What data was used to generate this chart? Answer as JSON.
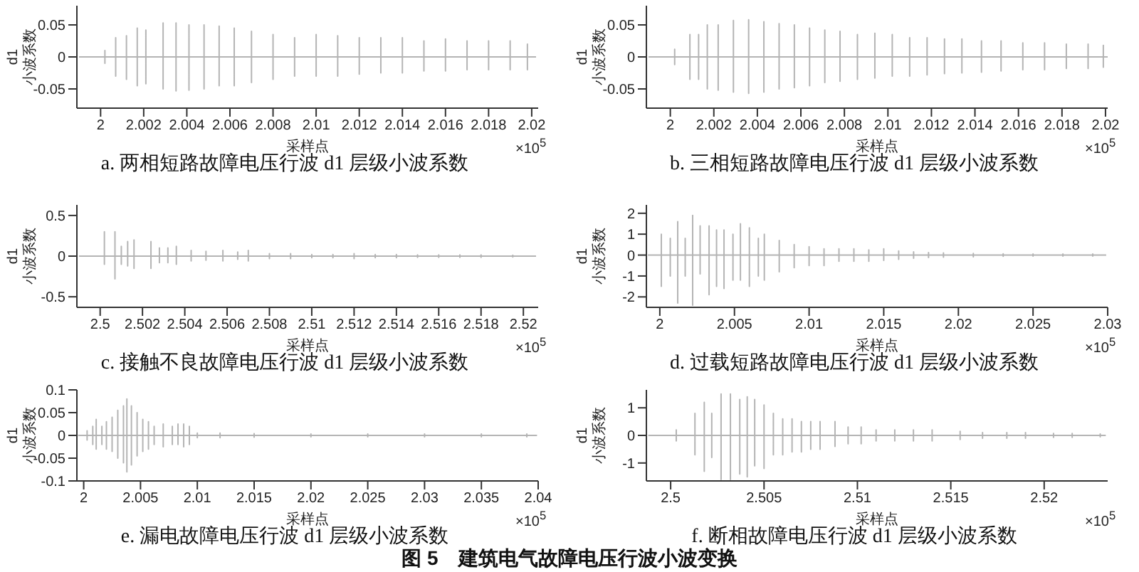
{
  "chart_data": [
    {
      "type": "line",
      "title": "a. 两相短路故障电压行波 d1 层级小波系数",
      "xlabel": "采样点",
      "ylabel": "d1 小波系数",
      "color": "#b4b4b4",
      "annotations": [
        "×10$^{5}$"
      ],
      "xlim": [
        1.9989,
        2.0203
      ],
      "xticks": [
        2,
        2.002,
        2.004,
        2.006,
        2.008,
        2.01,
        2.012,
        2.014,
        2.016,
        2.018,
        2.02
      ],
      "ylim": [
        -0.08,
        0.08
      ],
      "yticks": [
        -0.05,
        0,
        0.05
      ],
      "x": [
        1.999,
        2.0002,
        2.0002,
        2.0002,
        2.0002,
        2.0007,
        2.0007,
        2.0007,
        2.0007,
        2.0012,
        2.0012,
        2.0012,
        2.0012,
        2.0017,
        2.0017,
        2.0017,
        2.0017,
        2.0021,
        2.0021,
        2.0021,
        2.0021,
        2.0029,
        2.0029,
        2.0029,
        2.0029,
        2.0035,
        2.0035,
        2.0035,
        2.0035,
        2.0041,
        2.0041,
        2.0041,
        2.0041,
        2.0048,
        2.0048,
        2.0048,
        2.0048,
        2.0055,
        2.0055,
        2.0055,
        2.0055,
        2.0062,
        2.0062,
        2.0062,
        2.0062,
        2.007,
        2.007,
        2.007,
        2.007,
        2.008,
        2.008,
        2.008,
        2.008,
        2.009,
        2.009,
        2.009,
        2.009,
        2.01,
        2.01,
        2.01,
        2.01,
        2.011,
        2.011,
        2.011,
        2.011,
        2.012,
        2.012,
        2.012,
        2.012,
        2.013,
        2.013,
        2.013,
        2.013,
        2.014,
        2.014,
        2.014,
        2.014,
        2.015,
        2.015,
        2.015,
        2.015,
        2.016,
        2.016,
        2.016,
        2.016,
        2.017,
        2.017,
        2.017,
        2.017,
        2.018,
        2.018,
        2.018,
        2.018,
        2.019,
        2.019,
        2.019,
        2.019,
        2.0198,
        2.0198,
        2.0198,
        2.0198,
        2.0202
      ],
      "values": [
        0,
        0,
        0.01,
        -0.01,
        0,
        0,
        0.03,
        -0.03,
        0,
        0,
        0.033,
        -0.035,
        0,
        0,
        0.045,
        -0.045,
        0,
        0,
        0.042,
        -0.042,
        0,
        0,
        0.053,
        -0.05,
        0,
        0,
        0.053,
        -0.053,
        0,
        0,
        0.05,
        -0.052,
        0,
        0,
        0.05,
        -0.05,
        0,
        0,
        0.048,
        -0.045,
        0,
        0,
        0.045,
        -0.045,
        0,
        0,
        0.04,
        -0.04,
        0,
        0,
        0.035,
        -0.035,
        0,
        0,
        0.03,
        -0.03,
        0,
        0,
        0.035,
        -0.03,
        0,
        0,
        0.033,
        -0.03,
        0,
        0,
        0.03,
        -0.027,
        0,
        0,
        0.03,
        -0.025,
        0,
        0,
        0.03,
        -0.025,
        0,
        0,
        0.025,
        -0.022,
        0,
        0,
        0.028,
        -0.022,
        0,
        0,
        0.025,
        -0.02,
        0,
        0,
        0.025,
        -0.02,
        0,
        0,
        0.025,
        -0.02,
        0,
        0,
        0.02,
        -0.02,
        0,
        0
      ]
    },
    {
      "type": "line",
      "title": "b. 三相短路故障电压行波 d1 层级小波系数",
      "xlabel": "采样点",
      "ylabel": "d1 小波系数",
      "color": "#b4b4b4",
      "annotations": [
        "×10$^{5}$"
      ],
      "xlim": [
        1.9989,
        2.0201
      ],
      "xticks": [
        2,
        2.002,
        2.004,
        2.006,
        2.008,
        2.01,
        2.012,
        2.014,
        2.016,
        2.018,
        2.02
      ],
      "ylim": [
        -0.08,
        0.08
      ],
      "yticks": [
        -0.05,
        0,
        0.05
      ],
      "x": [
        1.999,
        2.0002,
        2.0002,
        2.0002,
        2.0002,
        2.0009,
        2.0009,
        2.0009,
        2.0009,
        2.0013,
        2.0013,
        2.0013,
        2.0013,
        2.0017,
        2.0017,
        2.0017,
        2.0017,
        2.0022,
        2.0022,
        2.0022,
        2.0022,
        2.0029,
        2.0029,
        2.0029,
        2.0029,
        2.0036,
        2.0036,
        2.0036,
        2.0036,
        2.0043,
        2.0043,
        2.0043,
        2.0043,
        2.005,
        2.005,
        2.005,
        2.005,
        2.0057,
        2.0057,
        2.0057,
        2.0057,
        2.0064,
        2.0064,
        2.0064,
        2.0064,
        2.0071,
        2.0071,
        2.0071,
        2.0071,
        2.0078,
        2.0078,
        2.0078,
        2.0078,
        2.0086,
        2.0086,
        2.0086,
        2.0086,
        2.0094,
        2.0094,
        2.0094,
        2.0094,
        2.0102,
        2.0102,
        2.0102,
        2.0102,
        2.011,
        2.011,
        2.011,
        2.011,
        2.0118,
        2.0118,
        2.0118,
        2.0118,
        2.0126,
        2.0126,
        2.0126,
        2.0126,
        2.0134,
        2.0134,
        2.0134,
        2.0134,
        2.0143,
        2.0143,
        2.0143,
        2.0143,
        2.0152,
        2.0152,
        2.0152,
        2.0152,
        2.0162,
        2.0162,
        2.0162,
        2.0162,
        2.0172,
        2.0172,
        2.0172,
        2.0172,
        2.0182,
        2.0182,
        2.0182,
        2.0182,
        2.0192,
        2.0192,
        2.0192,
        2.0192,
        2.0199,
        2.0199,
        2.0199,
        2.0199,
        2.0201
      ],
      "values": [
        0,
        0,
        0.012,
        -0.012,
        0,
        0,
        0.035,
        -0.035,
        0,
        0,
        0.035,
        -0.035,
        0,
        0,
        0.05,
        -0.05,
        0,
        0,
        0.05,
        -0.052,
        0,
        0,
        0.057,
        -0.055,
        0,
        0,
        0.058,
        -0.057,
        0,
        0,
        0.055,
        -0.055,
        0,
        0,
        0.052,
        -0.05,
        0,
        0,
        0.05,
        -0.048,
        0,
        0,
        0.045,
        -0.045,
        0,
        0,
        0.042,
        -0.04,
        0,
        0,
        0.04,
        -0.038,
        0,
        0,
        0.035,
        -0.035,
        0,
        0,
        0.037,
        -0.033,
        0,
        0,
        0.035,
        -0.03,
        0,
        0,
        0.03,
        -0.03,
        0,
        0,
        0.03,
        -0.028,
        0,
        0,
        0.028,
        -0.026,
        0,
        0,
        0.028,
        -0.025,
        0,
        0,
        0.025,
        -0.024,
        0,
        0,
        0.025,
        -0.022,
        0,
        0,
        0.022,
        -0.02,
        0,
        0,
        0.022,
        -0.02,
        0,
        0,
        0.02,
        -0.018,
        0,
        0,
        0.02,
        -0.018,
        0,
        0,
        0.018,
        -0.016,
        0,
        0
      ]
    },
    {
      "type": "line",
      "title": "c. 接触不良故障电压行波 d1 层级小波系数",
      "xlabel": "采样点",
      "ylabel": "d1 小波系数",
      "color": "#b4b4b4",
      "annotations": [
        "×10$^{5}$"
      ],
      "xlim": [
        2.4989,
        2.5207
      ],
      "xticks": [
        2.5,
        2.502,
        2.504,
        2.506,
        2.508,
        2.51,
        2.512,
        2.514,
        2.516,
        2.518,
        2.52
      ],
      "ylim": [
        -0.63,
        0.63
      ],
      "yticks": [
        -0.5,
        0,
        0.5
      ],
      "x": [
        2.499,
        2.5002,
        2.5002,
        2.5002,
        2.5002,
        2.5007,
        2.5007,
        2.5007,
        2.5007,
        2.501,
        2.501,
        2.501,
        2.501,
        2.5013,
        2.5013,
        2.5013,
        2.5013,
        2.5016,
        2.5016,
        2.5016,
        2.5016,
        2.5024,
        2.5024,
        2.5024,
        2.5024,
        2.5028,
        2.5028,
        2.5028,
        2.5028,
        2.5032,
        2.5032,
        2.5032,
        2.5032,
        2.5036,
        2.5036,
        2.5036,
        2.5036,
        2.5043,
        2.5043,
        2.5043,
        2.5043,
        2.505,
        2.505,
        2.505,
        2.505,
        2.5058,
        2.5058,
        2.5058,
        2.5058,
        2.5065,
        2.5065,
        2.5065,
        2.5065,
        2.507,
        2.507,
        2.507,
        2.507,
        2.508,
        2.508,
        2.508,
        2.508,
        2.509,
        2.509,
        2.509,
        2.509,
        2.51,
        2.51,
        2.51,
        2.51,
        2.511,
        2.511,
        2.511,
        2.511,
        2.512,
        2.512,
        2.512,
        2.512,
        2.513,
        2.513,
        2.513,
        2.513,
        2.514,
        2.514,
        2.514,
        2.514,
        2.515,
        2.515,
        2.515,
        2.515,
        2.516,
        2.516,
        2.516,
        2.516,
        2.517,
        2.517,
        2.517,
        2.517,
        2.518,
        2.518,
        2.518,
        2.518,
        2.5195,
        2.5195,
        2.5195,
        2.5195,
        2.5206
      ],
      "values": [
        0,
        0,
        0.3,
        -0.1,
        0,
        0,
        0.3,
        -0.28,
        0,
        0,
        0.12,
        -0.1,
        0,
        0,
        0.18,
        -0.12,
        0,
        0,
        0.2,
        -0.15,
        0,
        0,
        0.18,
        -0.15,
        0,
        0,
        0.1,
        -0.08,
        0,
        0,
        0.1,
        -0.08,
        0,
        0,
        0.12,
        -0.1,
        0,
        0,
        0.07,
        -0.06,
        0,
        0,
        0.06,
        -0.05,
        0,
        0,
        0.07,
        -0.06,
        0,
        0,
        0.05,
        -0.04,
        0,
        0,
        0.07,
        -0.06,
        0,
        0,
        0.03,
        -0.03,
        0,
        0,
        0.03,
        -0.03,
        0,
        0,
        0.02,
        -0.02,
        0,
        0,
        0.02,
        -0.02,
        0,
        0,
        0.03,
        -0.03,
        0,
        0,
        0.02,
        -0.02,
        0,
        0,
        0.02,
        -0.02,
        0,
        0,
        0.015,
        -0.015,
        0,
        0,
        0.015,
        -0.015,
        0,
        0,
        0.015,
        -0.015,
        0,
        0,
        0.015,
        -0.015,
        0,
        0,
        0.012,
        -0.012,
        0,
        0
      ]
    },
    {
      "type": "line",
      "title": "d. 过载短路故障电压行波 d1 层级小波系数",
      "xlabel": "采样点",
      "ylabel": "d1 小波系数",
      "color": "#b4b4b4",
      "annotations": [
        "×10$^{5}$"
      ],
      "xlim": [
        1.9991,
        2.03
      ],
      "xticks": [
        2,
        2.005,
        2.01,
        2.015,
        2.02,
        2.025,
        2.03
      ],
      "ylim": [
        -2.5,
        2.4
      ],
      "yticks": [
        -2,
        -1,
        0,
        1,
        2
      ],
      "x": [
        1.9992,
        2.0001,
        2.0001,
        2.0001,
        2.0001,
        2.0007,
        2.0007,
        2.0007,
        2.0007,
        2.0012,
        2.0012,
        2.0012,
        2.0012,
        2.0017,
        2.0017,
        2.0017,
        2.0017,
        2.0022,
        2.0022,
        2.0022,
        2.0022,
        2.0027,
        2.0027,
        2.0027,
        2.0027,
        2.0033,
        2.0033,
        2.0033,
        2.0033,
        2.0038,
        2.0038,
        2.0038,
        2.0038,
        2.0043,
        2.0043,
        2.0043,
        2.0043,
        2.0049,
        2.0049,
        2.0049,
        2.0049,
        2.0054,
        2.0054,
        2.0054,
        2.0054,
        2.006,
        2.006,
        2.006,
        2.006,
        2.0066,
        2.0066,
        2.0066,
        2.0066,
        2.007,
        2.007,
        2.007,
        2.007,
        2.008,
        2.008,
        2.008,
        2.008,
        2.009,
        2.009,
        2.009,
        2.009,
        2.01,
        2.01,
        2.01,
        2.01,
        2.011,
        2.011,
        2.011,
        2.011,
        2.012,
        2.012,
        2.012,
        2.012,
        2.013,
        2.013,
        2.013,
        2.013,
        2.014,
        2.014,
        2.014,
        2.014,
        2.015,
        2.015,
        2.015,
        2.015,
        2.016,
        2.016,
        2.016,
        2.016,
        2.017,
        2.017,
        2.017,
        2.017,
        2.018,
        2.018,
        2.018,
        2.018,
        2.019,
        2.019,
        2.019,
        2.019,
        2.021,
        2.021,
        2.021,
        2.021,
        2.023,
        2.023,
        2.023,
        2.023,
        2.025,
        2.025,
        2.025,
        2.025,
        2.027,
        2.027,
        2.027,
        2.027,
        2.029,
        2.029,
        2.029,
        2.029,
        2.0299
      ],
      "values": [
        0,
        0,
        1,
        -1.5,
        0,
        0,
        0.8,
        -1,
        0,
        0,
        1.6,
        -2.3,
        0,
        0,
        0.8,
        -1,
        0,
        0,
        1.9,
        -2.4,
        0,
        0,
        1.4,
        -0.9,
        0,
        0,
        1.4,
        -1.9,
        0,
        0,
        1.2,
        -1.5,
        0,
        0,
        1.2,
        -1.6,
        0,
        0,
        1,
        -1.2,
        0,
        0,
        1.5,
        -1.2,
        0,
        0,
        1.3,
        -1.5,
        0,
        0,
        0.8,
        -1,
        0,
        0,
        1,
        -1.2,
        0,
        0,
        0.7,
        -0.8,
        0,
        0,
        0.5,
        -0.6,
        0,
        0,
        0.4,
        -0.5,
        0,
        0,
        0.3,
        -0.5,
        0,
        0,
        0.3,
        -0.3,
        0,
        0,
        0.3,
        -0.3,
        0,
        0,
        0.25,
        -0.3,
        0,
        0,
        0.3,
        -0.25,
        0,
        0,
        0.2,
        -0.2,
        0,
        0,
        0.15,
        -0.15,
        0,
        0,
        0.12,
        -0.12,
        0,
        0,
        0.1,
        -0.1,
        0,
        0,
        0.08,
        -0.08,
        0,
        0,
        0.06,
        -0.06,
        0,
        0,
        0.05,
        -0.05,
        0,
        0,
        0.05,
        -0.05,
        0,
        0,
        0.05,
        -0.05,
        0,
        0
      ]
    },
    {
      "type": "line",
      "title": "e. 漏电故障电压行波 d1 层级小波系数",
      "xlabel": "采样点",
      "ylabel": "d1 小波系数",
      "color": "#b4b4b4",
      "annotations": [
        "×10$^{5}$"
      ],
      "xlim": [
        1.9994,
        2.04
      ],
      "xticks": [
        2,
        2.005,
        2.01,
        2.015,
        2.02,
        2.025,
        2.03,
        2.035,
        2.04
      ],
      "ylim": [
        -0.1,
        0.1
      ],
      "yticks": [
        -0.1,
        -0.05,
        0,
        0.05,
        0.1
      ],
      "x": [
        1.9995,
        2.0003,
        2.0003,
        2.0003,
        2.0003,
        2.0008,
        2.0008,
        2.0008,
        2.0008,
        2.0011,
        2.0011,
        2.0011,
        2.0011,
        2.0016,
        2.0016,
        2.0016,
        2.0016,
        2.002,
        2.002,
        2.002,
        2.002,
        2.0025,
        2.0025,
        2.0025,
        2.0025,
        2.003,
        2.003,
        2.003,
        2.003,
        2.0035,
        2.0035,
        2.0035,
        2.0035,
        2.0038,
        2.0038,
        2.0038,
        2.0038,
        2.0042,
        2.0042,
        2.0042,
        2.0042,
        2.0047,
        2.0047,
        2.0047,
        2.0047,
        2.0052,
        2.0052,
        2.0052,
        2.0052,
        2.0057,
        2.0057,
        2.0057,
        2.0057,
        2.0062,
        2.0062,
        2.0062,
        2.0062,
        2.007,
        2.007,
        2.007,
        2.007,
        2.0078,
        2.0078,
        2.0078,
        2.0078,
        2.0083,
        2.0083,
        2.0083,
        2.0083,
        2.0088,
        2.0088,
        2.0088,
        2.0088,
        2.0093,
        2.0093,
        2.0093,
        2.0093,
        2.01,
        2.01,
        2.01,
        2.01,
        2.012,
        2.012,
        2.012,
        2.012,
        2.015,
        2.015,
        2.015,
        2.015,
        2.02,
        2.02,
        2.02,
        2.02,
        2.025,
        2.025,
        2.025,
        2.025,
        2.03,
        2.03,
        2.03,
        2.03,
        2.035,
        2.035,
        2.035,
        2.035,
        2.039,
        2.039,
        2.039,
        2.039,
        2.0399
      ],
      "values": [
        0,
        0,
        0.01,
        -0.01,
        0,
        0,
        0.02,
        -0.02,
        0,
        0,
        0.035,
        -0.03,
        0,
        0,
        0.02,
        -0.02,
        0,
        0,
        0.03,
        -0.03,
        0,
        0,
        0.04,
        -0.035,
        0,
        0,
        0.055,
        -0.05,
        0,
        0,
        0.065,
        -0.06,
        0,
        0,
        0.08,
        -0.08,
        0,
        0,
        0.065,
        -0.065,
        0,
        0,
        0.05,
        -0.045,
        0,
        0,
        0.035,
        -0.035,
        0,
        0,
        0.03,
        -0.03,
        0,
        0,
        0.02,
        -0.02,
        0,
        0,
        0.025,
        -0.025,
        0,
        0,
        0.02,
        -0.02,
        0,
        0,
        0.025,
        -0.02,
        0,
        0,
        0.025,
        -0.025,
        0,
        0,
        0.02,
        -0.02,
        0,
        0,
        0.005,
        -0.005,
        0,
        0,
        0.005,
        -0.005,
        0,
        0,
        0.004,
        -0.004,
        0,
        0,
        0.003,
        -0.003,
        0,
        0,
        0.003,
        -0.003,
        0,
        0,
        0.003,
        -0.003,
        0,
        0,
        0.003,
        -0.003,
        0,
        0,
        0.003,
        -0.003,
        0,
        0
      ]
    },
    {
      "type": "line",
      "title": "f. 断相故障电压行波 d1 层级小波系数",
      "xlabel": "采样点",
      "ylabel": "d1 小波系数",
      "color": "#b4b4b4",
      "annotations": [
        "×10$^{5}$",
        "图 5　建筑电气故障电压行波小波变换"
      ],
      "xlim": [
        2.4987,
        2.5234
      ],
      "xticks": [
        2.5,
        2.505,
        2.51,
        2.515,
        2.52
      ],
      "ylim": [
        -1.65,
        1.65
      ],
      "yticks": [
        -1,
        0,
        1
      ],
      "x": [
        2.4988,
        2.5003,
        2.5003,
        2.5003,
        2.5003,
        2.5013,
        2.5013,
        2.5013,
        2.5013,
        2.5018,
        2.5018,
        2.5018,
        2.5018,
        2.5022,
        2.5022,
        2.5022,
        2.5022,
        2.5027,
        2.5027,
        2.5027,
        2.5027,
        2.5032,
        2.5032,
        2.5032,
        2.5032,
        2.5037,
        2.5037,
        2.5037,
        2.5037,
        2.5041,
        2.5041,
        2.5041,
        2.5041,
        2.5045,
        2.5045,
        2.5045,
        2.5045,
        2.505,
        2.505,
        2.505,
        2.505,
        2.5055,
        2.5055,
        2.5055,
        2.5055,
        2.506,
        2.506,
        2.506,
        2.506,
        2.5065,
        2.5065,
        2.5065,
        2.5065,
        2.507,
        2.507,
        2.507,
        2.507,
        2.5075,
        2.5075,
        2.5075,
        2.5075,
        2.508,
        2.508,
        2.508,
        2.508,
        2.5088,
        2.5088,
        2.5088,
        2.5088,
        2.5095,
        2.5095,
        2.5095,
        2.5095,
        2.5102,
        2.5102,
        2.5102,
        2.5102,
        2.511,
        2.511,
        2.511,
        2.511,
        2.512,
        2.512,
        2.512,
        2.512,
        2.513,
        2.513,
        2.513,
        2.513,
        2.514,
        2.514,
        2.514,
        2.514,
        2.5155,
        2.5155,
        2.5155,
        2.5155,
        2.5167,
        2.5167,
        2.5167,
        2.5167,
        2.518,
        2.518,
        2.518,
        2.518,
        2.519,
        2.519,
        2.519,
        2.519,
        2.5205,
        2.5205,
        2.5205,
        2.5205,
        2.5215,
        2.5215,
        2.5215,
        2.5215,
        2.523,
        2.523,
        2.523,
        2.523,
        2.5233
      ],
      "values": [
        0,
        0,
        0.2,
        -0.2,
        0,
        0,
        0.8,
        -0.7,
        0,
        0,
        1.2,
        -1.3,
        0,
        0,
        0.8,
        -0.8,
        0,
        0,
        1.5,
        -1.6,
        0,
        0,
        1.5,
        -1.6,
        0,
        0,
        1.3,
        -1.4,
        0,
        0,
        1.4,
        -1.5,
        0,
        0,
        1.3,
        -1.1,
        0,
        0,
        1.1,
        -1.2,
        0,
        0,
        0.8,
        -0.7,
        0,
        0,
        0.6,
        -0.7,
        0,
        0,
        0.6,
        -0.6,
        0,
        0,
        0.5,
        -0.6,
        0,
        0,
        0.5,
        -0.5,
        0,
        0,
        0.5,
        -0.5,
        0,
        0,
        0.5,
        -0.4,
        0,
        0,
        0.3,
        -0.3,
        0,
        0,
        0.3,
        -0.3,
        0,
        0,
        0.2,
        -0.2,
        0,
        0,
        0.2,
        -0.2,
        0,
        0,
        0.2,
        -0.2,
        0,
        0,
        0.2,
        -0.2,
        0,
        0,
        0.15,
        -0.15,
        0,
        0,
        0.1,
        -0.1,
        0,
        0,
        0.1,
        -0.1,
        0,
        0,
        0.1,
        -0.1,
        0,
        0,
        0.07,
        -0.07,
        0,
        0,
        0.07,
        -0.07,
        0,
        0,
        0.05,
        -0.05,
        0,
        0
      ]
    }
  ]
}
